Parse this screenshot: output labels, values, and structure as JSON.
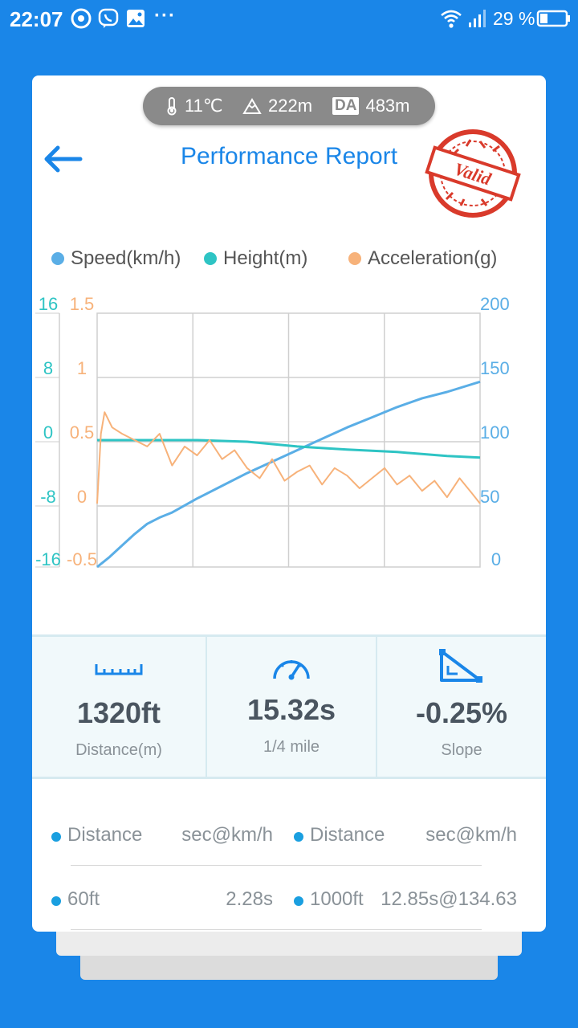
{
  "status_bar": {
    "time": "22:07",
    "battery_pct": "29 %",
    "icons": [
      "chrome-icon",
      "viber-icon",
      "gallery-icon",
      "more-dots-icon",
      "wifi-icon",
      "signal-icon",
      "battery-icon"
    ]
  },
  "env": {
    "temperature": "11℃",
    "altitude": "222m",
    "da_label": "DA",
    "density_altitude": "483m"
  },
  "header": {
    "title": "Performance Report",
    "stamp_text": "Valid"
  },
  "legend": {
    "speed": "Speed(km/h)",
    "height": "Height(m)",
    "accel": "Acceleration(g)"
  },
  "chart_data": {
    "type": "line",
    "x_range": [
      0,
      15.32
    ],
    "axes": {
      "height_ticks": [
        "16",
        "8",
        "0",
        "-8",
        "-16"
      ],
      "accel_ticks": [
        "1.5",
        "1",
        "0.5",
        "0",
        "-0.5"
      ],
      "speed_ticks": [
        "200",
        "150",
        "100",
        "50",
        "0"
      ],
      "height_range": [
        -16,
        16
      ],
      "accel_range": [
        -0.5,
        1.5
      ],
      "speed_range": [
        0,
        200
      ]
    },
    "series": [
      {
        "name": "Speed(km/h)",
        "axis": "speed",
        "color": "#5aaee6",
        "x": [
          0,
          0.5,
          1,
          1.5,
          2,
          2.5,
          3,
          4,
          5,
          6,
          7,
          8,
          9,
          10,
          11,
          12,
          13,
          14,
          15.32
        ],
        "y": [
          0,
          8,
          17,
          26,
          34,
          39,
          43,
          54,
          64,
          74,
          83,
          92,
          101,
          110,
          118,
          126,
          133,
          138,
          146
        ]
      },
      {
        "name": "Height(m)",
        "axis": "height",
        "color": "#2ec4c4",
        "x": [
          0,
          2,
          4,
          6,
          8,
          10,
          12,
          14,
          15.32
        ],
        "y": [
          0,
          0,
          0,
          -0.2,
          -0.8,
          -1.2,
          -1.5,
          -2,
          -2.2
        ]
      },
      {
        "name": "Acceleration(g)",
        "axis": "accel",
        "color": "#f7b27a",
        "x": [
          0,
          0.15,
          0.3,
          0.6,
          1,
          1.5,
          2,
          2.5,
          3,
          3.5,
          4,
          4.5,
          5,
          5.5,
          6,
          6.5,
          7,
          7.5,
          8,
          8.5,
          9,
          9.5,
          10,
          10.5,
          11,
          11.5,
          12,
          12.5,
          13,
          13.5,
          14,
          14.5,
          15,
          15.32
        ],
        "y": [
          0,
          0.55,
          0.72,
          0.6,
          0.55,
          0.5,
          0.45,
          0.55,
          0.3,
          0.45,
          0.38,
          0.5,
          0.35,
          0.42,
          0.28,
          0.2,
          0.35,
          0.18,
          0.25,
          0.3,
          0.15,
          0.28,
          0.22,
          0.12,
          0.2,
          0.28,
          0.15,
          0.22,
          0.1,
          0.18,
          0.05,
          0.2,
          0.08,
          0.0
        ]
      }
    ]
  },
  "stats": [
    {
      "value": "1320ft",
      "label": "Distance(m)",
      "icon": "ruler-icon"
    },
    {
      "value": "15.32s",
      "label": "1/4 mile",
      "icon": "speedometer-icon"
    },
    {
      "value": "-0.25%",
      "label": "Slope",
      "icon": "slope-icon"
    }
  ],
  "splits": {
    "header": {
      "col1": "Distance",
      "col2": "sec@km/h",
      "col3": "Distance",
      "col4": "sec@km/h"
    },
    "rows": [
      {
        "col1": "60ft",
        "col2": "2.28s",
        "col3": "1000ft",
        "col4": "12.85s@134.63"
      }
    ]
  }
}
